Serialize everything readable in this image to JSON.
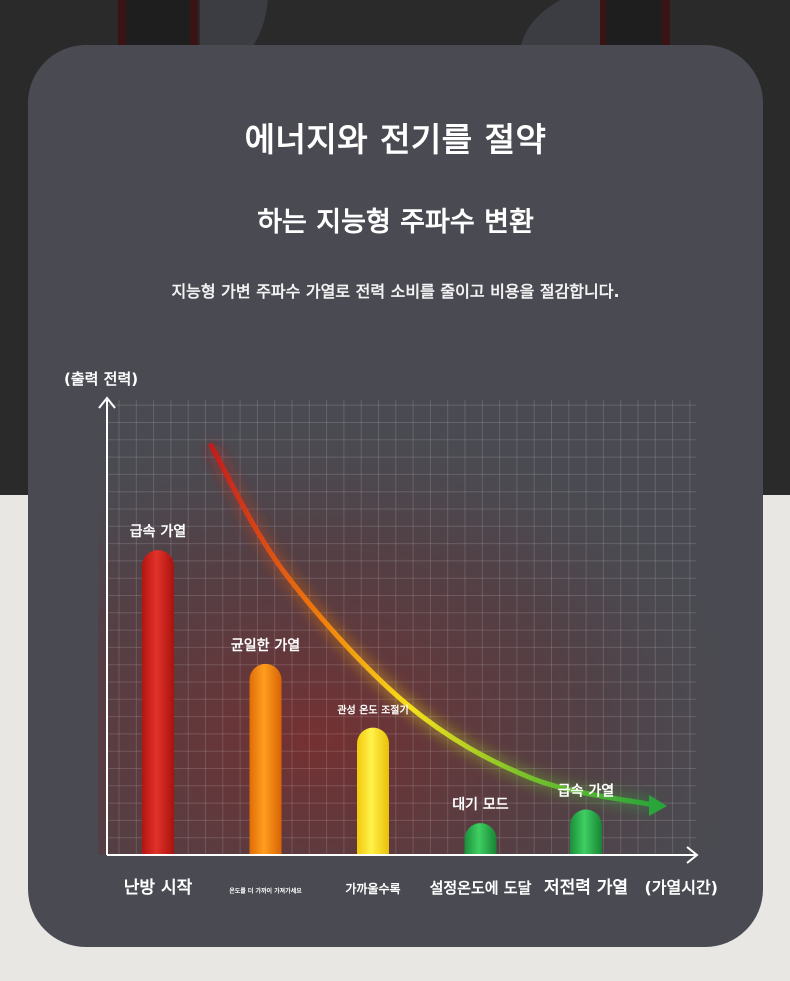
{
  "header": {
    "title": "에너지와 전기를 절약",
    "subtitle": "하는 지능형 주파수 변환",
    "description": "지능형 가변 주파수 가열로 전력 소비를 줄이고 비용을 절감합니다."
  },
  "colors": {
    "page_dark": "#2a2a2b",
    "page_light": "#e9e7e4",
    "card": "#4a4b52",
    "bar_red": "#d7251b",
    "bar_orange": "#f07d0c",
    "bar_yellow": "#f6d91a",
    "bar_green": "#27a84a",
    "curve_start": "#c41b1b",
    "curve_end": "#2aa53a"
  },
  "chart_data": {
    "type": "bar",
    "ylabel": "(출력 전력)",
    "xlabel": "(가열시간)",
    "ylim": [
      0,
      100
    ],
    "grid": true,
    "categories": [
      "난방 시작",
      "온도를 더 가까이 가져가세요",
      "가까울수록",
      "설정온도에 도달",
      "저전력 가열"
    ],
    "values": [
      67,
      42,
      28,
      7,
      10
    ],
    "bar_colors": [
      "#d7251b",
      "#f07d0c",
      "#f6d91a",
      "#27a84a",
      "#27a84a"
    ],
    "bar_labels": [
      "급속 가열",
      "균일한 가열",
      "관성 온도 조절기",
      "대기 모드",
      "급속 가열"
    ],
    "trend_curve": {
      "x": [
        0.1,
        0.25,
        0.5,
        0.75,
        1.0
      ],
      "y": [
        90,
        62,
        33,
        17,
        11
      ]
    }
  }
}
